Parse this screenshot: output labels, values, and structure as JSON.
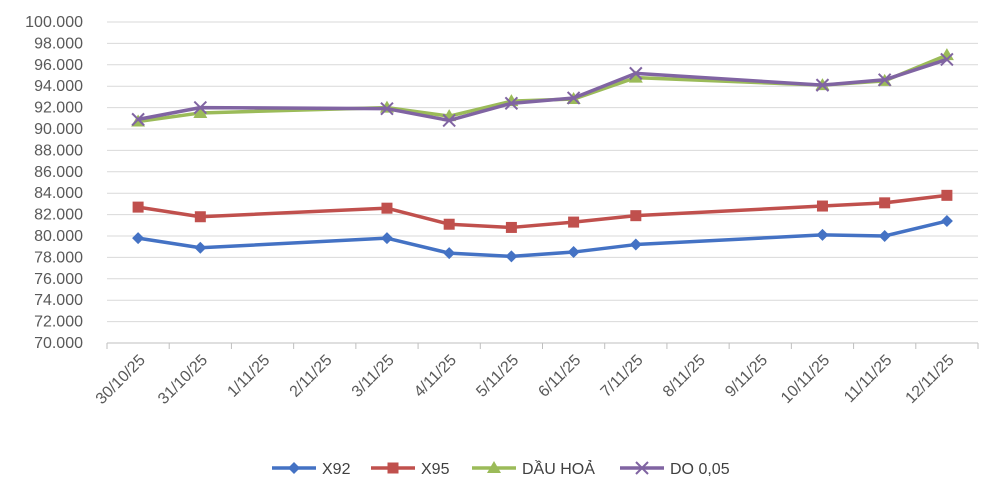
{
  "chart_data": {
    "type": "line",
    "title": "",
    "xlabel": "",
    "ylabel": "",
    "ylim": [
      70000,
      100000
    ],
    "ytick_step": 2000,
    "ytick_labels": [
      "70.000",
      "72.000",
      "74.000",
      "76.000",
      "78.000",
      "80.000",
      "82.000",
      "84.000",
      "86.000",
      "88.000",
      "90.000",
      "92.000",
      "94.000",
      "96.000",
      "98.000",
      "100.000"
    ],
    "categories": [
      "30/10/25",
      "31/10/25",
      "1/11/25",
      "2/11/25",
      "3/11/25",
      "4/11/25",
      "5/11/25",
      "6/11/25",
      "7/11/25",
      "8/11/25",
      "9/11/25",
      "10/11/25",
      "11/11/25",
      "12/11/25"
    ],
    "grid": "horizontal",
    "legend_position": "bottom",
    "series": [
      {
        "name": "X92",
        "color": "#4472C4",
        "marker": "diamond",
        "values": [
          79800,
          78900,
          null,
          null,
          79800,
          78400,
          78100,
          78500,
          79200,
          null,
          null,
          80100,
          80000,
          81400
        ]
      },
      {
        "name": "X95",
        "color": "#C0504D",
        "marker": "square",
        "values": [
          82700,
          81800,
          null,
          null,
          82600,
          81100,
          80800,
          81300,
          81900,
          null,
          null,
          82800,
          83100,
          83800
        ]
      },
      {
        "name": "DẦU HOẢ",
        "color": "#9BBB59",
        "marker": "triangle",
        "values": [
          90700,
          91500,
          null,
          null,
          92000,
          91200,
          92600,
          92800,
          94800,
          null,
          null,
          94100,
          94500,
          96900
        ]
      },
      {
        "name": "DO 0,05",
        "color": "#8064A2",
        "marker": "x",
        "values": [
          90900,
          92000,
          null,
          null,
          91900,
          90800,
          92400,
          92900,
          95200,
          null,
          null,
          94100,
          94600,
          96500
        ]
      }
    ]
  }
}
